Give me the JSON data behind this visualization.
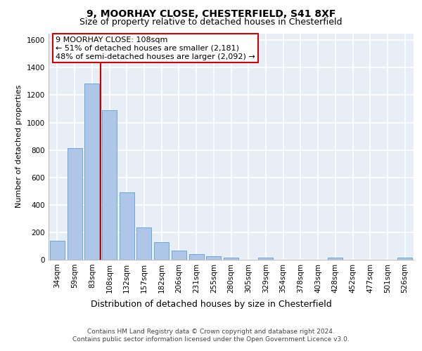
{
  "title1": "9, MOORHAY CLOSE, CHESTERFIELD, S41 8XF",
  "title2": "Size of property relative to detached houses in Chesterfield",
  "xlabel": "Distribution of detached houses by size in Chesterfield",
  "ylabel": "Number of detached properties",
  "categories": [
    "34sqm",
    "59sqm",
    "83sqm",
    "108sqm",
    "132sqm",
    "157sqm",
    "182sqm",
    "206sqm",
    "231sqm",
    "255sqm",
    "280sqm",
    "305sqm",
    "329sqm",
    "354sqm",
    "378sqm",
    "403sqm",
    "428sqm",
    "452sqm",
    "477sqm",
    "501sqm",
    "526sqm"
  ],
  "values": [
    140,
    815,
    1285,
    1090,
    490,
    235,
    128,
    65,
    40,
    27,
    15,
    0,
    15,
    0,
    0,
    0,
    15,
    0,
    0,
    0,
    15
  ],
  "bar_color": "#aec6e8",
  "bar_edge_color": "#5a9fd4",
  "property_bin_index": 3,
  "annotation_text": "9 MOORHAY CLOSE: 108sqm\n← 51% of detached houses are smaller (2,181)\n48% of semi-detached houses are larger (2,092) →",
  "annotation_box_color": "#ffffff",
  "annotation_edge_color": "#cc0000",
  "vline_color": "#cc0000",
  "ylim": [
    0,
    1650
  ],
  "yticks": [
    0,
    200,
    400,
    600,
    800,
    1000,
    1200,
    1400,
    1600
  ],
  "background_color": "#e8eef6",
  "grid_color": "#ffffff",
  "footer_line1": "Contains HM Land Registry data © Crown copyright and database right 2024.",
  "footer_line2": "Contains public sector information licensed under the Open Government Licence v3.0.",
  "title1_fontsize": 10,
  "title2_fontsize": 9,
  "xlabel_fontsize": 9,
  "ylabel_fontsize": 8,
  "tick_fontsize": 7.5,
  "annotation_fontsize": 8,
  "footer_fontsize": 6.5
}
